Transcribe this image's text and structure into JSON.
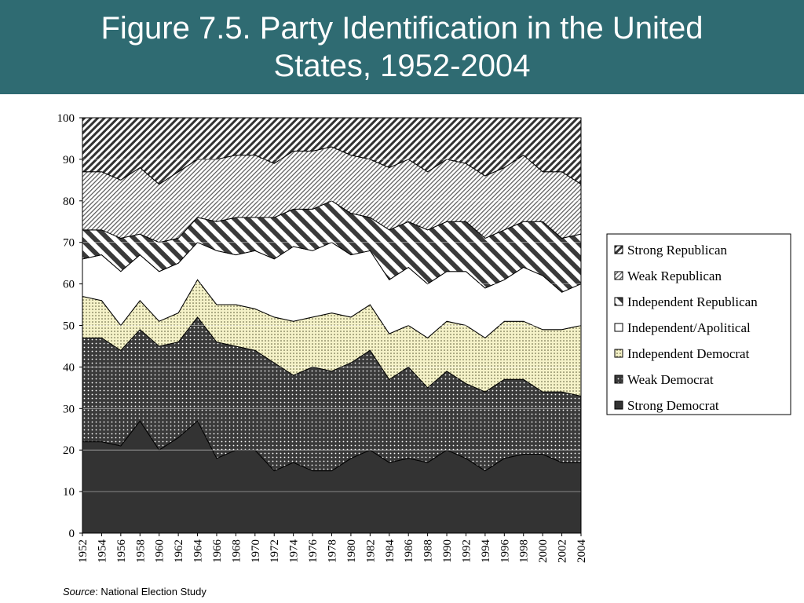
{
  "slide": {
    "title_line1": "Figure 7.5. Party Identification in the United",
    "title_line2": "States, 1952-2004",
    "source_label": "Source",
    "source_text": ": National Election Study"
  },
  "colors": {
    "header_bg": "#2f6b72",
    "strong_democrat": "#333333",
    "independent_democrat": "#f5f2c8"
  },
  "chart_data": {
    "type": "area",
    "stacked": true,
    "title": "",
    "xlabel": "",
    "ylabel": "",
    "ylim": [
      0,
      100
    ],
    "yticks": [
      0,
      10,
      20,
      30,
      40,
      50,
      60,
      70,
      80,
      90,
      100
    ],
    "x": [
      "1952",
      "1954",
      "1956",
      "1958",
      "1960",
      "1962",
      "1964",
      "1966",
      "1968",
      "1970",
      "1972",
      "1974",
      "1976",
      "1978",
      "1980",
      "1982",
      "1984",
      "1986",
      "1988",
      "1990",
      "1992",
      "1994",
      "1996",
      "1998",
      "2000",
      "2002",
      "2004"
    ],
    "legend_position": "right",
    "legend_order": [
      "Strong Republican",
      "Weak Republican",
      "Independent Republican",
      "Independent/Apolitical",
      "Independent Democrat",
      "Weak Democrat",
      "Strong Democrat"
    ],
    "cumulative_series": [
      {
        "name": "Strong Democrat",
        "pattern": "solid",
        "values": [
          22,
          22,
          21,
          27,
          20,
          23,
          27,
          18,
          20,
          20,
          15,
          17,
          15,
          15,
          18,
          20,
          17,
          18,
          17,
          20,
          18,
          15,
          18,
          19,
          19,
          17,
          17
        ]
      },
      {
        "name": "Weak Democrat",
        "pattern": "dots-dark",
        "values": [
          47,
          47,
          44,
          49,
          45,
          46,
          52,
          46,
          45,
          44,
          41,
          38,
          40,
          39,
          41,
          44,
          37,
          40,
          35,
          39,
          36,
          34,
          37,
          37,
          34,
          34,
          33
        ]
      },
      {
        "name": "Independent Democrat",
        "pattern": "dots-light",
        "values": [
          57,
          56,
          50,
          56,
          51,
          53,
          61,
          55,
          55,
          54,
          52,
          51,
          52,
          53,
          52,
          55,
          48,
          50,
          47,
          51,
          50,
          47,
          51,
          51,
          49,
          49,
          50
        ]
      },
      {
        "name": "Independent/Apolitical",
        "pattern": "white",
        "values": [
          66,
          67,
          63,
          67,
          63,
          65,
          70,
          68,
          67,
          68,
          66,
          69,
          68,
          70,
          67,
          68,
          61,
          64,
          60,
          63,
          63,
          59,
          61,
          64,
          62,
          58,
          60
        ]
      },
      {
        "name": "Independent Republican",
        "pattern": "wide-stripes",
        "values": [
          73,
          73,
          71,
          72,
          70,
          71,
          76,
          75,
          76,
          76,
          76,
          78,
          78,
          80,
          77,
          76,
          73,
          75,
          73,
          75,
          75,
          71,
          73,
          75,
          75,
          71,
          72
        ]
      },
      {
        "name": "Weak Republican",
        "pattern": "fine-hatch",
        "values": [
          87,
          87,
          85,
          88,
          84,
          87,
          90,
          90,
          91,
          91,
          89,
          92,
          92,
          93,
          91,
          90,
          88,
          90,
          87,
          90,
          89,
          86,
          88,
          91,
          87,
          87,
          84
        ]
      },
      {
        "name": "Strong Republican",
        "pattern": "dense-stripes",
        "values": [
          100,
          100,
          100,
          100,
          100,
          100,
          100,
          100,
          100,
          100,
          100,
          100,
          100,
          100,
          100,
          100,
          100,
          100,
          100,
          100,
          100,
          100,
          100,
          100,
          100,
          100,
          100
        ]
      }
    ]
  }
}
